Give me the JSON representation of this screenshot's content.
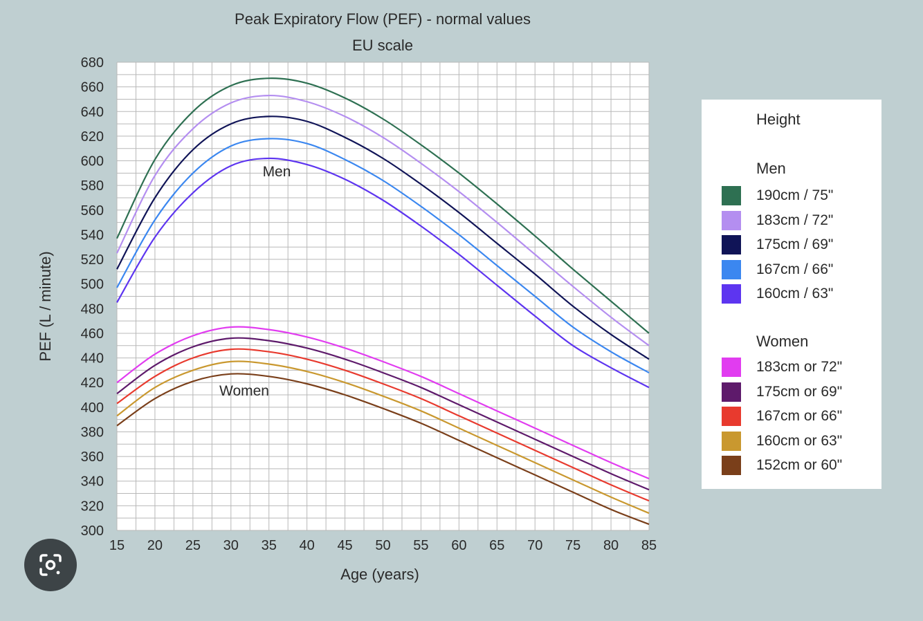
{
  "chart_data": {
    "type": "line",
    "title": "Peak Expiratory Flow (PEF) - normal values",
    "subtitle": "EU scale",
    "xlabel": "Age (years)",
    "ylabel": "PEF (L / minute)",
    "xlim": [
      15,
      85
    ],
    "ylim": [
      300,
      680
    ],
    "x_ticks": [
      15,
      20,
      25,
      30,
      35,
      40,
      45,
      50,
      55,
      60,
      65,
      70,
      75,
      80,
      85
    ],
    "y_ticks": [
      300,
      320,
      340,
      360,
      380,
      400,
      420,
      440,
      460,
      480,
      500,
      520,
      540,
      560,
      580,
      600,
      620,
      640,
      660,
      680
    ],
    "grid": true,
    "legend_position": "right",
    "annotations": [
      {
        "text": "Men",
        "x": 35,
        "y": 590
      },
      {
        "text": "Women",
        "x": 31,
        "y": 400
      }
    ],
    "x": [
      15,
      20,
      25,
      30,
      35,
      40,
      45,
      50,
      55,
      60,
      65,
      70,
      75,
      80,
      85
    ],
    "series": [
      {
        "group": "Men",
        "name": "190cm / 75\"",
        "color": "#2e7052",
        "values": [
          537,
          601,
          640,
          661,
          667,
          663,
          651,
          634,
          613,
          590,
          565,
          539,
          512,
          486,
          460
        ]
      },
      {
        "group": "Men",
        "name": "183cm / 72\"",
        "color": "#b48ef0",
        "values": [
          525,
          588,
          626,
          647,
          653,
          648,
          636,
          619,
          598,
          575,
          550,
          524,
          498,
          473,
          450
        ]
      },
      {
        "group": "Men",
        "name": "175cm / 69\"",
        "color": "#101457",
        "values": [
          512,
          570,
          609,
          630,
          636,
          632,
          619,
          602,
          581,
          558,
          533,
          508,
          482,
          459,
          439
        ]
      },
      {
        "group": "Men",
        "name": "167cm / 66\"",
        "color": "#3b87f0",
        "values": [
          497,
          552,
          590,
          612,
          618,
          614,
          601,
          584,
          563,
          540,
          515,
          490,
          465,
          445,
          428
        ]
      },
      {
        "group": "Men",
        "name": "160cm / 63\"",
        "color": "#5d35f0",
        "values": [
          485,
          538,
          574,
          596,
          602,
          597,
          585,
          568,
          547,
          524,
          499,
          474,
          450,
          432,
          416
        ]
      },
      {
        "group": "Women",
        "name": "183cm or 72\"",
        "color": "#e13cf0",
        "values": [
          420,
          443,
          458,
          465,
          463,
          457,
          448,
          437,
          425,
          411,
          397,
          383,
          369,
          355,
          342
        ]
      },
      {
        "group": "Women",
        "name": "175cm or 69\"",
        "color": "#5e1a6b",
        "values": [
          411,
          434,
          449,
          456,
          454,
          448,
          439,
          428,
          416,
          402,
          388,
          374,
          360,
          346,
          333
        ]
      },
      {
        "group": "Women",
        "name": "167cm or 66\"",
        "color": "#e83a2e",
        "values": [
          403,
          425,
          440,
          447,
          445,
          439,
          430,
          419,
          407,
          393,
          379,
          365,
          351,
          337,
          324
        ]
      },
      {
        "group": "Women",
        "name": "160cm or 63\"",
        "color": "#c9982f",
        "values": [
          393,
          416,
          430,
          437,
          435,
          429,
          420,
          409,
          397,
          383,
          369,
          355,
          341,
          327,
          314
        ]
      },
      {
        "group": "Women",
        "name": "152cm or 60\"",
        "color": "#7a3f1a",
        "values": [
          385,
          407,
          421,
          427,
          425,
          419,
          410,
          399,
          387,
          373,
          359,
          345,
          331,
          317,
          305
        ]
      }
    ]
  },
  "legend": {
    "title": "Height",
    "men_heading": "Men",
    "women_heading": "Women"
  },
  "lens_button": {
    "icon": "lens-icon"
  }
}
